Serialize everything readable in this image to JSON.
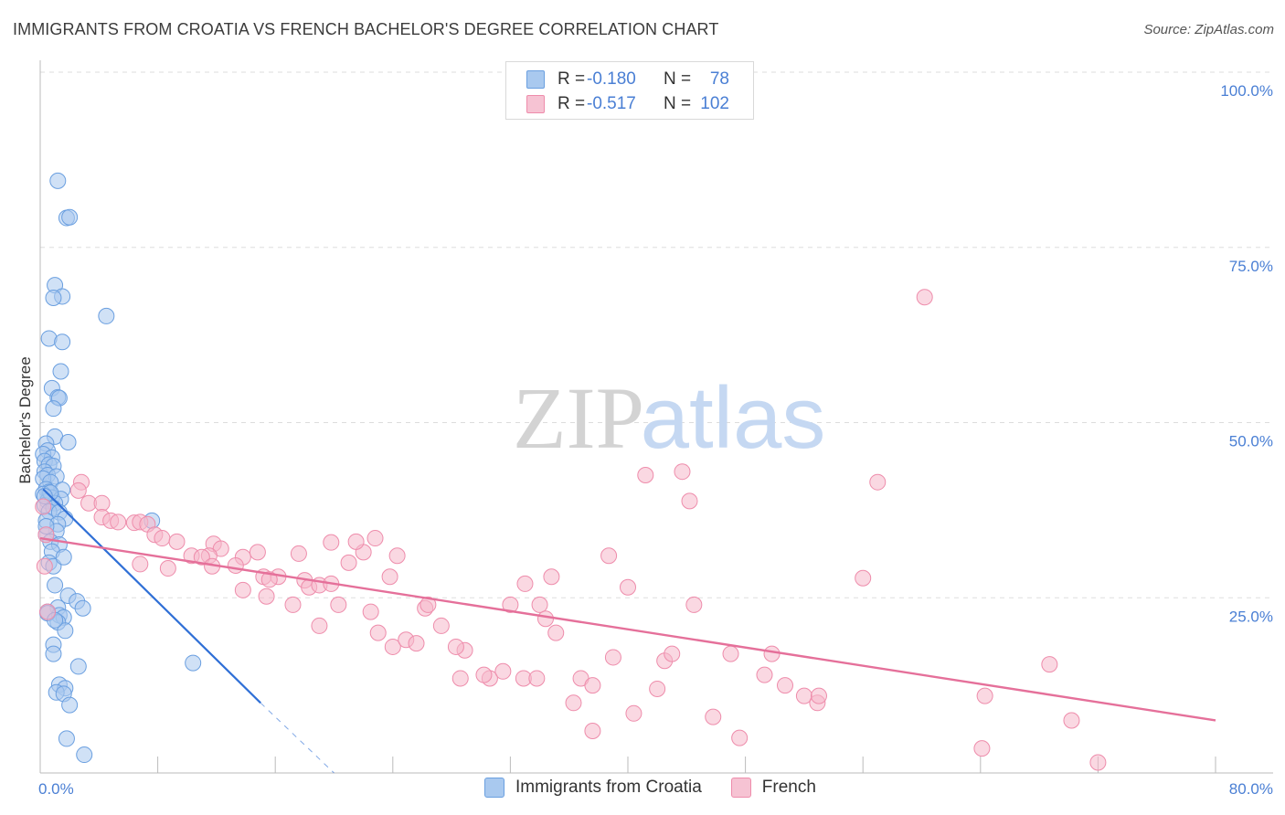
{
  "title": "IMMIGRANTS FROM CROATIA VS FRENCH BACHELOR'S DEGREE CORRELATION CHART",
  "source": "Source: ZipAtlas.com",
  "watermark": {
    "zip": "ZIP",
    "atlas": "atlas"
  },
  "colors": {
    "blue_fill": "#a9c9ef",
    "blue_stroke": "#6a9fe0",
    "blue_line": "#2f6fd6",
    "pink_fill": "#f6b8cb",
    "pink_stroke": "#ee8cab",
    "pink_line": "#e5709a",
    "axis_text": "#4a7fd4",
    "grid": "#dddddd"
  },
  "legend": {
    "rows": [
      {
        "r_label": "R =",
        "r_value": "-0.180",
        "n_label": "N =",
        "n_value": "78"
      },
      {
        "r_label": "R =",
        "r_value": "-0.517",
        "n_label": "N =",
        "n_value": "102"
      }
    ]
  },
  "chart_data": {
    "type": "scatter",
    "ylabel": "Bachelor's Degree",
    "xlim": [
      0,
      80
    ],
    "ylim": [
      0,
      100
    ],
    "x_tick_labels": {
      "min": "0.0%",
      "max": "80.0%"
    },
    "y_ticks": [
      {
        "value": 100,
        "label": "100.0%"
      },
      {
        "value": 75,
        "label": "75.0%"
      },
      {
        "value": 50,
        "label": "50.0%"
      },
      {
        "value": 25,
        "label": "25.0%"
      }
    ],
    "series": [
      {
        "name": "Immigrants from Croatia",
        "color": "blue",
        "trend": {
          "x0": 0.2,
          "y0": 40.5,
          "x1": 15.0,
          "y1": 10.0,
          "dash_to_x": 20.0,
          "dash_to_y": 0.0
        },
        "points": [
          [
            1.2,
            84.5
          ],
          [
            1.8,
            79.2
          ],
          [
            2.0,
            79.3
          ],
          [
            1.0,
            69.6
          ],
          [
            1.5,
            68.0
          ],
          [
            0.9,
            67.8
          ],
          [
            4.5,
            65.2
          ],
          [
            0.6,
            62.0
          ],
          [
            1.5,
            61.5
          ],
          [
            1.4,
            57.3
          ],
          [
            0.8,
            54.9
          ],
          [
            1.2,
            53.6
          ],
          [
            1.3,
            53.5
          ],
          [
            0.9,
            52.0
          ],
          [
            1.0,
            48.0
          ],
          [
            1.9,
            47.2
          ],
          [
            0.4,
            47.0
          ],
          [
            0.5,
            46.0
          ],
          [
            0.2,
            45.5
          ],
          [
            0.8,
            45.0
          ],
          [
            0.3,
            44.5
          ],
          [
            0.6,
            44.0
          ],
          [
            0.9,
            43.8
          ],
          [
            0.3,
            43.0
          ],
          [
            0.5,
            42.5
          ],
          [
            1.1,
            42.3
          ],
          [
            0.2,
            42.0
          ],
          [
            0.7,
            41.5
          ],
          [
            0.4,
            40.5
          ],
          [
            1.5,
            40.4
          ],
          [
            0.6,
            40.1
          ],
          [
            0.2,
            39.8
          ],
          [
            0.8,
            39.3
          ],
          [
            1.4,
            39.1
          ],
          [
            0.5,
            38.8
          ],
          [
            1.0,
            38.5
          ],
          [
            0.3,
            38.2
          ],
          [
            0.9,
            37.8
          ],
          [
            0.6,
            37.3
          ],
          [
            1.3,
            37.2
          ],
          [
            1.7,
            36.3
          ],
          [
            0.4,
            36.0
          ],
          [
            1.2,
            35.5
          ],
          [
            7.6,
            36.0
          ],
          [
            1.1,
            34.5
          ],
          [
            0.4,
            34.0
          ],
          [
            0.7,
            33.0
          ],
          [
            1.3,
            32.6
          ],
          [
            0.8,
            31.6
          ],
          [
            0.6,
            30.0
          ],
          [
            0.9,
            29.5
          ],
          [
            1.0,
            26.8
          ],
          [
            1.9,
            25.3
          ],
          [
            2.5,
            24.5
          ],
          [
            1.2,
            23.6
          ],
          [
            2.9,
            23.5
          ],
          [
            0.5,
            23.0
          ],
          [
            1.3,
            22.5
          ],
          [
            1.6,
            22.2
          ],
          [
            1.2,
            21.5
          ],
          [
            1.7,
            20.3
          ],
          [
            0.9,
            18.3
          ],
          [
            0.9,
            17.0
          ],
          [
            2.6,
            15.2
          ],
          [
            10.4,
            15.7
          ],
          [
            1.3,
            12.6
          ],
          [
            1.7,
            12.1
          ],
          [
            1.1,
            11.5
          ],
          [
            1.6,
            11.3
          ],
          [
            2.0,
            9.7
          ],
          [
            1.8,
            4.9
          ],
          [
            3.0,
            2.6
          ],
          [
            0.5,
            22.8
          ],
          [
            1.0,
            21.8
          ],
          [
            0.7,
            40.0
          ],
          [
            0.3,
            39.5
          ],
          [
            1.6,
            30.8
          ],
          [
            0.4,
            35.2
          ]
        ]
      },
      {
        "name": "French",
        "color": "pink",
        "trend": {
          "x0": 0.0,
          "y0": 33.5,
          "x1": 80.0,
          "y1": 7.5
        },
        "points": [
          [
            0.2,
            38.0
          ],
          [
            0.4,
            34.0
          ],
          [
            0.3,
            29.5
          ],
          [
            0.5,
            23.0
          ],
          [
            2.8,
            41.5
          ],
          [
            2.6,
            40.3
          ],
          [
            3.3,
            38.5
          ],
          [
            4.2,
            38.5
          ],
          [
            4.2,
            36.5
          ],
          [
            4.8,
            36.0
          ],
          [
            5.3,
            35.8
          ],
          [
            6.4,
            35.7
          ],
          [
            6.8,
            35.8
          ],
          [
            7.3,
            35.5
          ],
          [
            7.8,
            34.0
          ],
          [
            8.3,
            33.5
          ],
          [
            9.3,
            33.0
          ],
          [
            11.8,
            32.7
          ],
          [
            12.3,
            32.0
          ],
          [
            11.5,
            31.0
          ],
          [
            10.3,
            31.0
          ],
          [
            11.0,
            30.8
          ],
          [
            13.8,
            30.8
          ],
          [
            14.8,
            31.5
          ],
          [
            6.8,
            29.8
          ],
          [
            8.7,
            29.2
          ],
          [
            11.7,
            29.5
          ],
          [
            13.3,
            29.6
          ],
          [
            15.2,
            28.0
          ],
          [
            16.2,
            28.0
          ],
          [
            15.6,
            27.6
          ],
          [
            18.0,
            27.5
          ],
          [
            18.3,
            26.5
          ],
          [
            13.8,
            26.1
          ],
          [
            15.4,
            25.2
          ],
          [
            17.2,
            24.0
          ],
          [
            19.0,
            26.8
          ],
          [
            19.8,
            27.0
          ],
          [
            17.6,
            31.3
          ],
          [
            19.8,
            32.9
          ],
          [
            21.0,
            30.0
          ],
          [
            22.0,
            31.5
          ],
          [
            22.8,
            33.5
          ],
          [
            23.8,
            28.0
          ],
          [
            24.3,
            31.0
          ],
          [
            26.2,
            23.5
          ],
          [
            20.3,
            24.0
          ],
          [
            22.5,
            23.0
          ],
          [
            19.0,
            21.0
          ],
          [
            23.0,
            20.0
          ],
          [
            24.0,
            18.0
          ],
          [
            24.9,
            19.0
          ],
          [
            25.6,
            18.5
          ],
          [
            26.4,
            24.0
          ],
          [
            27.3,
            21.0
          ],
          [
            28.9,
            17.5
          ],
          [
            28.3,
            18.0
          ],
          [
            28.6,
            13.5
          ],
          [
            30.6,
            13.5
          ],
          [
            31.5,
            14.5
          ],
          [
            32.9,
            13.5
          ],
          [
            33.8,
            13.5
          ],
          [
            30.2,
            14.0
          ],
          [
            32.0,
            24.0
          ],
          [
            33.0,
            27.0
          ],
          [
            34.8,
            28.0
          ],
          [
            34.0,
            24.0
          ],
          [
            34.4,
            22.0
          ],
          [
            35.1,
            20.0
          ],
          [
            36.3,
            10.0
          ],
          [
            36.8,
            13.5
          ],
          [
            37.6,
            12.5
          ],
          [
            37.6,
            6.0
          ],
          [
            38.7,
            31.0
          ],
          [
            39.0,
            16.5
          ],
          [
            40.0,
            26.5
          ],
          [
            41.2,
            42.5
          ],
          [
            42.0,
            12.0
          ],
          [
            42.5,
            16.0
          ],
          [
            43.0,
            17.0
          ],
          [
            43.7,
            43.0
          ],
          [
            44.2,
            38.8
          ],
          [
            44.5,
            24.0
          ],
          [
            45.8,
            8.0
          ],
          [
            47.0,
            17.0
          ],
          [
            47.6,
            5.0
          ],
          [
            49.3,
            14.0
          ],
          [
            49.8,
            17.0
          ],
          [
            50.7,
            12.5
          ],
          [
            52.0,
            11.0
          ],
          [
            52.9,
            10.0
          ],
          [
            56.0,
            27.8
          ],
          [
            57.0,
            41.5
          ],
          [
            60.2,
            67.9
          ],
          [
            64.1,
            3.5
          ],
          [
            64.3,
            11.0
          ],
          [
            68.7,
            15.5
          ],
          [
            70.2,
            7.5
          ],
          [
            72.0,
            1.5
          ],
          [
            40.4,
            8.5
          ],
          [
            53.0,
            11.0
          ],
          [
            21.5,
            33.0
          ]
        ]
      }
    ]
  },
  "bottom_legend": [
    "Immigrants from Croatia",
    "French"
  ]
}
